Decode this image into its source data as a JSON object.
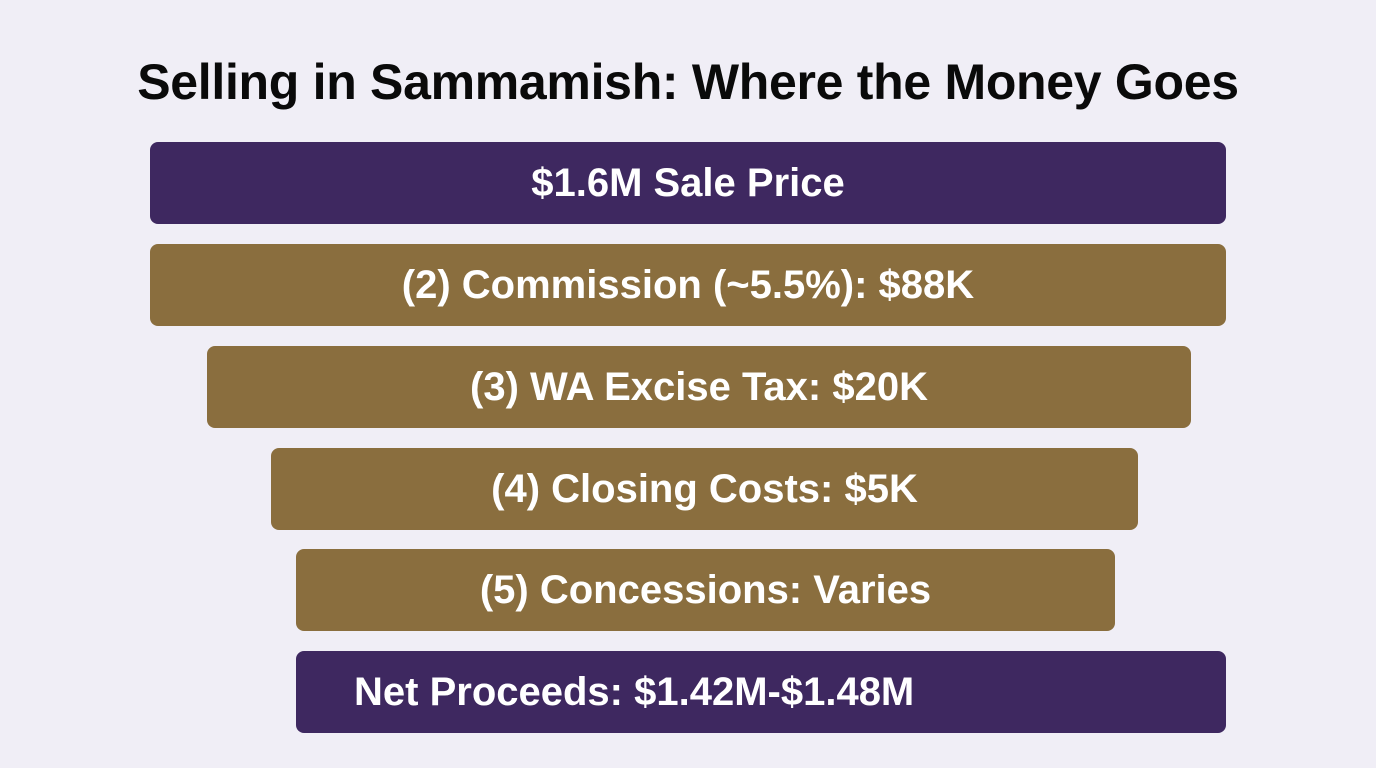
{
  "title": "Selling in Sammamish: Where the Money Goes",
  "colors": {
    "background": "#f0eef6",
    "purple": "#3e2860",
    "gold": "#8a6e3e",
    "text": "#ffffff"
  },
  "steps": [
    {
      "label": "$1.6M Sale Price"
    },
    {
      "label": "(2) Commission (~5.5%): $88K"
    },
    {
      "label": "(3) WA Excise Tax: $20K"
    },
    {
      "label": "(4) Closing Costs: $5K"
    },
    {
      "label": "(5) Concessions: Varies"
    },
    {
      "label": "Net Proceeds: $1.42M-$1.48M"
    }
  ]
}
